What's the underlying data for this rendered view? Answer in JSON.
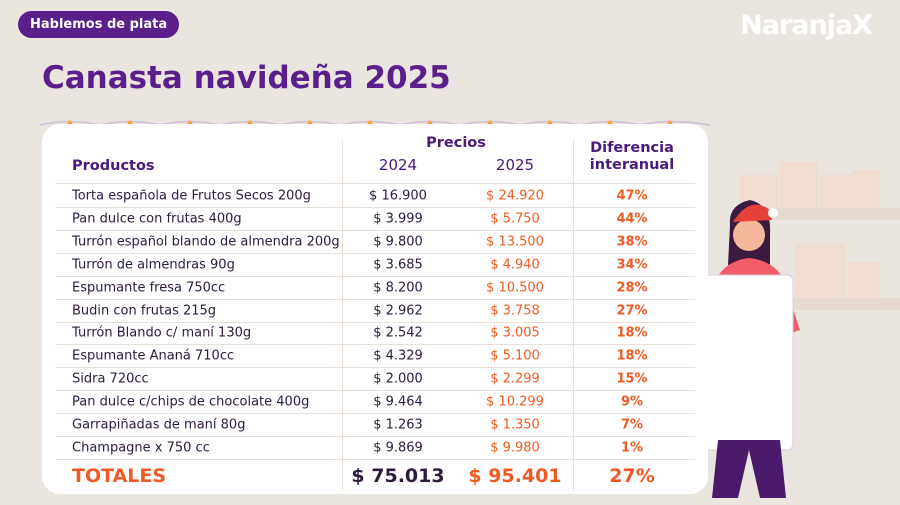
{
  "badge": "Hablemos de plata",
  "logo": "NaranjaX",
  "title": "Canasta navideña 2025",
  "table": {
    "header": {
      "product": "Productos",
      "prices": "Precios",
      "year_a": "2024",
      "year_b": "2025",
      "difference": "Diferencia interanual"
    },
    "rows": [
      [
        "Torta española de Frutos Secos 200g",
        "$ 16.900",
        "$ 24.920",
        "47%"
      ],
      [
        "Pan dulce con frutas 400g",
        "$ 3.999",
        "$ 5.750",
        "44%"
      ],
      [
        "Turrón español blando de almendra 200g",
        "$ 9.800",
        "$ 13.500",
        "38%"
      ],
      [
        "Turrón de almendras 90g",
        "$ 3.685",
        "$ 4.940",
        "34%"
      ],
      [
        "Espumante fresa 750cc",
        "$ 8.200",
        "$ 10.500",
        "28%"
      ],
      [
        "Budin con frutas 215g",
        "$ 2.962",
        "$ 3.758",
        "27%"
      ],
      [
        "Turrón Blando c/ maní 130g",
        "$ 2.542",
        "$ 3.005",
        "18%"
      ],
      [
        "Espumante Ananá 710cc",
        "$ 4.329",
        "$ 5.100",
        "18%"
      ],
      [
        "Sidra 720cc",
        "$ 2.000",
        "$ 2.299",
        "15%"
      ],
      [
        "Pan dulce c/chips de chocolate 400g",
        "$ 9.464",
        "$ 10.299",
        "9%"
      ],
      [
        "Garrapiñadas de maní 80g",
        "$ 1.263",
        "$ 1.350",
        "7%"
      ],
      [
        "Champagne x 750 cc",
        "$ 9.869",
        "$ 9.980",
        "1%"
      ]
    ],
    "totals": [
      "TOTALES",
      "$ 75.013",
      "$ 95.401",
      "27%"
    ]
  }
}
